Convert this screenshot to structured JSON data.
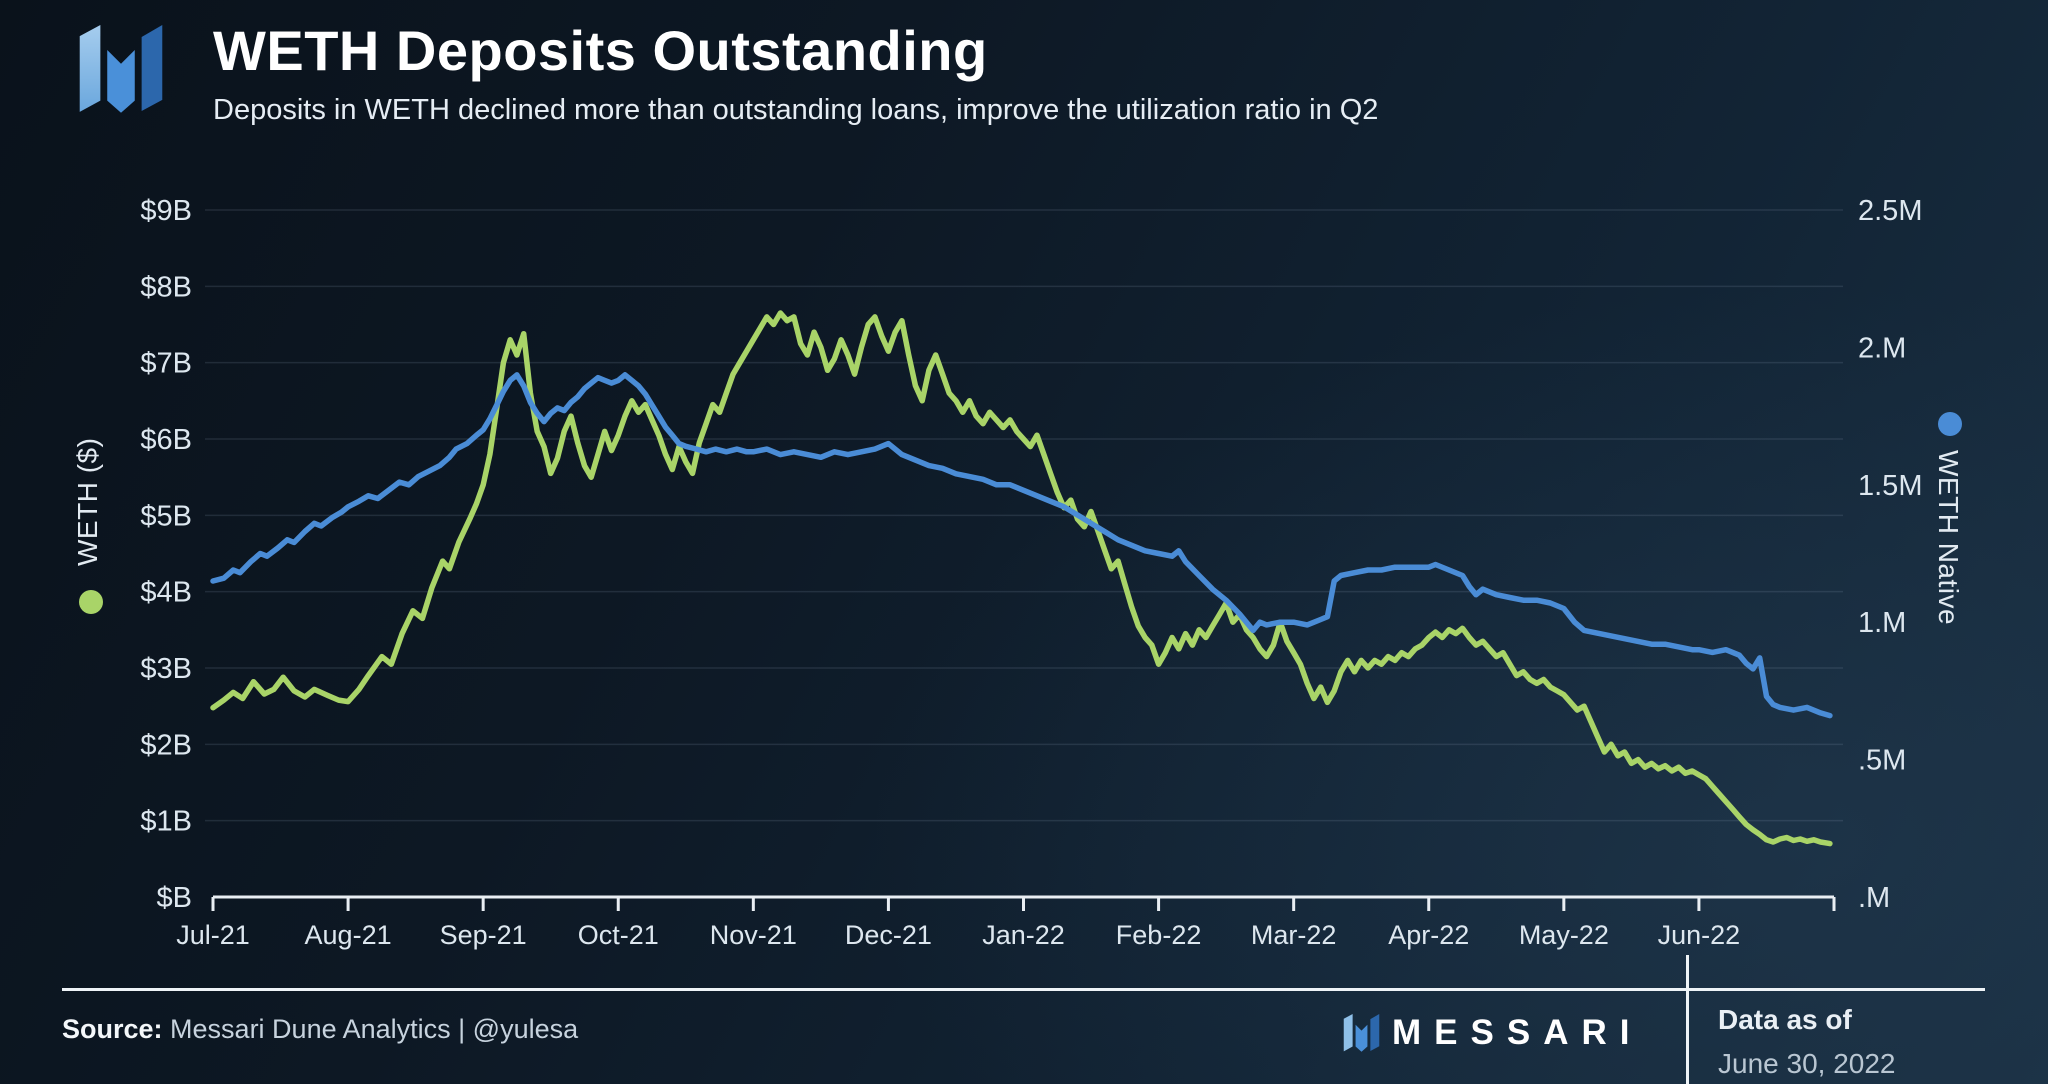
{
  "header": {
    "title": "WETH Deposits Outstanding",
    "subtitle": "Deposits in WETH declined more than outstanding loans, improve the utilization ratio in Q2"
  },
  "footer": {
    "source_label": "Source:",
    "source_value": "Messari Dune Analytics | @yulesa",
    "brand": "MESSARI",
    "data_as_of_label": "Data as of",
    "data_as_of_value": "June 30, 2022"
  },
  "colors": {
    "green_series": "#a9d468",
    "blue_series": "#4a8cd6",
    "axis_line": "#e9eef3",
    "grid_line": "#8fa3b5",
    "tick_text": "#dde7ef",
    "logo_light_blue": "#8fc0e8",
    "logo_mid_blue": "#4a90d9",
    "logo_dark_blue": "#2c67ac"
  },
  "chart_data": {
    "type": "line",
    "title": "WETH Deposits Outstanding",
    "subtitle": "Deposits in WETH declined more than outstanding loans, improve the utilization ratio in Q2",
    "grid": "horizontal-only",
    "x_tick_labels": [
      "Jul-21",
      "Aug-21",
      "Sep-21",
      "Oct-21",
      "Nov-21",
      "Dec-21",
      "Jan-22",
      "Feb-22",
      "Mar-22",
      "Apr-22",
      "May-22",
      "Jun-22"
    ],
    "left_axis": {
      "label": "WETH ($)",
      "tick_labels": [
        "$B",
        "$1B",
        "$2B",
        "$3B",
        "$4B",
        "$5B",
        "$6B",
        "$7B",
        "$8B",
        "$9B"
      ],
      "range_billions": [
        0,
        9
      ]
    },
    "right_axis": {
      "label": "WETH Native",
      "tick_labels": [
        ".M",
        ".5M",
        "1.M",
        "1.5M",
        "2.M",
        "2.5M"
      ],
      "tick_values_millions": [
        0,
        0.5,
        1,
        1.5,
        2,
        2.5
      ],
      "range_millions": [
        0,
        2.5
      ]
    },
    "legend": [
      {
        "name": "WETH ($)",
        "color": "#a9d468",
        "axis": "left"
      },
      {
        "name": "WETH Native",
        "color": "#4a8cd6",
        "axis": "right"
      }
    ],
    "series": [
      {
        "name": "WETH ($)",
        "axis": "left",
        "unit": "billions USD",
        "color": "#a9d468",
        "x": [
          0,
          0.08,
          0.15,
          0.22,
          0.3,
          0.38,
          0.45,
          0.52,
          0.6,
          0.68,
          0.75,
          0.85,
          0.93,
          1,
          1.08,
          1.15,
          1.25,
          1.32,
          1.4,
          1.48,
          1.55,
          1.62,
          1.7,
          1.75,
          1.82,
          1.9,
          1.95,
          2,
          2.05,
          2.1,
          2.15,
          2.2,
          2.25,
          2.3,
          2.35,
          2.4,
          2.45,
          2.5,
          2.55,
          2.6,
          2.65,
          2.7,
          2.75,
          2.8,
          2.85,
          2.9,
          2.95,
          3,
          3.05,
          3.1,
          3.15,
          3.2,
          3.25,
          3.3,
          3.35,
          3.4,
          3.45,
          3.5,
          3.55,
          3.6,
          3.65,
          3.7,
          3.75,
          3.8,
          3.85,
          3.9,
          3.95,
          4,
          4.05,
          4.1,
          4.15,
          4.2,
          4.25,
          4.3,
          4.35,
          4.4,
          4.45,
          4.5,
          4.55,
          4.6,
          4.65,
          4.7,
          4.75,
          4.8,
          4.85,
          4.9,
          4.95,
          5,
          5.05,
          5.1,
          5.15,
          5.2,
          5.25,
          5.3,
          5.35,
          5.4,
          5.45,
          5.5,
          5.55,
          5.6,
          5.65,
          5.7,
          5.75,
          5.8,
          5.85,
          5.9,
          5.95,
          6,
          6.05,
          6.1,
          6.15,
          6.2,
          6.25,
          6.3,
          6.35,
          6.4,
          6.45,
          6.5,
          6.55,
          6.6,
          6.65,
          6.7,
          6.75,
          6.8,
          6.85,
          6.9,
          6.95,
          7,
          7.05,
          7.1,
          7.15,
          7.2,
          7.25,
          7.3,
          7.35,
          7.4,
          7.45,
          7.5,
          7.55,
          7.6,
          7.65,
          7.7,
          7.75,
          7.8,
          7.85,
          7.9,
          7.95,
          8,
          8.05,
          8.1,
          8.15,
          8.2,
          8.25,
          8.3,
          8.35,
          8.4,
          8.45,
          8.5,
          8.55,
          8.6,
          8.65,
          8.7,
          8.75,
          8.8,
          8.85,
          8.9,
          8.95,
          9,
          9.05,
          9.1,
          9.15,
          9.2,
          9.25,
          9.3,
          9.35,
          9.4,
          9.45,
          9.5,
          9.55,
          9.6,
          9.65,
          9.7,
          9.75,
          9.8,
          9.85,
          9.9,
          9.95,
          10,
          10.05,
          10.1,
          10.15,
          10.2,
          10.25,
          10.3,
          10.35,
          10.4,
          10.45,
          10.5,
          10.55,
          10.6,
          10.65,
          10.7,
          10.75,
          10.8,
          10.85,
          10.9,
          10.95,
          11,
          11.05,
          11.1,
          11.15,
          11.2,
          11.25,
          11.3,
          11.35,
          11.4,
          11.45,
          11.5,
          11.55,
          11.6,
          11.65,
          11.7,
          11.75,
          11.8,
          11.85,
          11.9,
          11.97
        ],
        "values": [
          2.48,
          2.58,
          2.68,
          2.6,
          2.82,
          2.66,
          2.72,
          2.88,
          2.7,
          2.62,
          2.72,
          2.64,
          2.58,
          2.56,
          2.72,
          2.9,
          3.15,
          3.05,
          3.45,
          3.75,
          3.65,
          4.05,
          4.4,
          4.3,
          4.65,
          4.95,
          5.15,
          5.4,
          5.8,
          6.4,
          7,
          7.3,
          7.1,
          7.38,
          6.6,
          6.1,
          5.9,
          5.55,
          5.75,
          6.1,
          6.3,
          5.95,
          5.65,
          5.5,
          5.8,
          6.1,
          5.85,
          6.05,
          6.3,
          6.5,
          6.35,
          6.45,
          6.25,
          6.05,
          5.8,
          5.6,
          5.9,
          5.7,
          5.55,
          5.95,
          6.2,
          6.45,
          6.35,
          6.6,
          6.85,
          7,
          7.15,
          7.3,
          7.45,
          7.6,
          7.5,
          7.65,
          7.55,
          7.6,
          7.25,
          7.1,
          7.4,
          7.2,
          6.9,
          7.05,
          7.3,
          7.1,
          6.85,
          7.2,
          7.5,
          7.6,
          7.35,
          7.15,
          7.4,
          7.55,
          7.1,
          6.7,
          6.5,
          6.9,
          7.1,
          6.85,
          6.6,
          6.5,
          6.35,
          6.5,
          6.3,
          6.2,
          6.35,
          6.25,
          6.15,
          6.25,
          6.1,
          6,
          5.9,
          6.05,
          5.8,
          5.55,
          5.3,
          5.1,
          5.2,
          4.95,
          4.85,
          5.05,
          4.8,
          4.55,
          4.3,
          4.4,
          4.1,
          3.8,
          3.55,
          3.4,
          3.3,
          3.05,
          3.2,
          3.4,
          3.25,
          3.45,
          3.3,
          3.5,
          3.4,
          3.55,
          3.7,
          3.85,
          3.6,
          3.7,
          3.5,
          3.4,
          3.25,
          3.15,
          3.3,
          3.6,
          3.35,
          3.2,
          3.05,
          2.8,
          2.6,
          2.75,
          2.55,
          2.7,
          2.95,
          3.1,
          2.95,
          3.1,
          3,
          3.1,
          3.05,
          3.15,
          3.1,
          3.2,
          3.15,
          3.25,
          3.3,
          3.4,
          3.47,
          3.4,
          3.5,
          3.45,
          3.52,
          3.4,
          3.3,
          3.35,
          3.25,
          3.15,
          3.2,
          3.05,
          2.9,
          2.95,
          2.85,
          2.8,
          2.85,
          2.75,
          2.7,
          2.65,
          2.55,
          2.45,
          2.5,
          2.3,
          2.1,
          1.9,
          2,
          1.85,
          1.9,
          1.75,
          1.8,
          1.7,
          1.75,
          1.68,
          1.72,
          1.65,
          1.7,
          1.62,
          1.65,
          1.6,
          1.55,
          1.45,
          1.35,
          1.25,
          1.15,
          1.05,
          0.95,
          0.88,
          0.82,
          0.75,
          0.72,
          0.76,
          0.78,
          0.74,
          0.76,
          0.73,
          0.75,
          0.72,
          0.7
        ]
      },
      {
        "name": "WETH Native",
        "axis": "right",
        "unit": "millions WETH",
        "color": "#4a8cd6",
        "x": [
          0,
          0.08,
          0.15,
          0.2,
          0.28,
          0.35,
          0.4,
          0.48,
          0.55,
          0.6,
          0.68,
          0.75,
          0.8,
          0.88,
          0.95,
          1,
          1.08,
          1.15,
          1.22,
          1.3,
          1.38,
          1.45,
          1.52,
          1.6,
          1.68,
          1.75,
          1.8,
          1.88,
          1.95,
          2,
          2.05,
          2.1,
          2.15,
          2.2,
          2.25,
          2.3,
          2.35,
          2.4,
          2.45,
          2.5,
          2.55,
          2.6,
          2.65,
          2.7,
          2.75,
          2.8,
          2.85,
          2.9,
          2.95,
          3,
          3.05,
          3.1,
          3.15,
          3.2,
          3.25,
          3.3,
          3.35,
          3.4,
          3.45,
          3.5,
          3.58,
          3.65,
          3.72,
          3.8,
          3.88,
          3.95,
          4,
          4.1,
          4.2,
          4.3,
          4.4,
          4.5,
          4.6,
          4.7,
          4.8,
          4.9,
          5,
          5.05,
          5.1,
          5.2,
          5.3,
          5.4,
          5.5,
          5.6,
          5.7,
          5.8,
          5.9,
          6,
          6.1,
          6.2,
          6.3,
          6.4,
          6.5,
          6.6,
          6.7,
          6.8,
          6.9,
          7,
          7.1,
          7.15,
          7.2,
          7.3,
          7.4,
          7.5,
          7.6,
          7.7,
          7.75,
          7.8,
          7.9,
          8,
          8.1,
          8.2,
          8.25,
          8.3,
          8.35,
          8.45,
          8.55,
          8.65,
          8.75,
          8.85,
          8.95,
          9,
          9.05,
          9.15,
          9.25,
          9.3,
          9.35,
          9.4,
          9.5,
          9.6,
          9.7,
          9.8,
          9.9,
          10,
          10.08,
          10.15,
          10.25,
          10.35,
          10.45,
          10.55,
          10.65,
          10.75,
          10.85,
          10.95,
          11,
          11.1,
          11.2,
          11.3,
          11.35,
          11.4,
          11.45,
          11.5,
          11.55,
          11.6,
          11.7,
          11.8,
          11.9,
          11.97
        ],
        "values": [
          1.15,
          1.16,
          1.19,
          1.18,
          1.22,
          1.25,
          1.24,
          1.27,
          1.3,
          1.29,
          1.33,
          1.36,
          1.35,
          1.38,
          1.4,
          1.42,
          1.44,
          1.46,
          1.45,
          1.48,
          1.51,
          1.5,
          1.53,
          1.55,
          1.57,
          1.6,
          1.63,
          1.65,
          1.68,
          1.7,
          1.74,
          1.79,
          1.84,
          1.88,
          1.9,
          1.86,
          1.8,
          1.76,
          1.73,
          1.76,
          1.78,
          1.77,
          1.8,
          1.82,
          1.85,
          1.87,
          1.89,
          1.88,
          1.87,
          1.88,
          1.9,
          1.88,
          1.86,
          1.83,
          1.79,
          1.75,
          1.71,
          1.68,
          1.65,
          1.64,
          1.63,
          1.62,
          1.63,
          1.62,
          1.63,
          1.62,
          1.62,
          1.63,
          1.61,
          1.62,
          1.61,
          1.6,
          1.62,
          1.61,
          1.62,
          1.63,
          1.65,
          1.63,
          1.61,
          1.59,
          1.57,
          1.56,
          1.54,
          1.53,
          1.52,
          1.5,
          1.5,
          1.48,
          1.46,
          1.44,
          1.42,
          1.39,
          1.36,
          1.33,
          1.3,
          1.28,
          1.26,
          1.25,
          1.24,
          1.26,
          1.22,
          1.17,
          1.12,
          1.08,
          1.03,
          0.97,
          1,
          0.99,
          1,
          1,
          0.99,
          1.01,
          1.02,
          1.15,
          1.17,
          1.18,
          1.19,
          1.19,
          1.2,
          1.2,
          1.2,
          1.2,
          1.21,
          1.19,
          1.17,
          1.13,
          1.1,
          1.12,
          1.1,
          1.09,
          1.08,
          1.08,
          1.07,
          1.05,
          1,
          0.97,
          0.96,
          0.95,
          0.94,
          0.93,
          0.92,
          0.92,
          0.91,
          0.9,
          0.9,
          0.89,
          0.9,
          0.88,
          0.85,
          0.83,
          0.87,
          0.73,
          0.7,
          0.69,
          0.68,
          0.69,
          0.67,
          0.66
        ]
      }
    ]
  }
}
